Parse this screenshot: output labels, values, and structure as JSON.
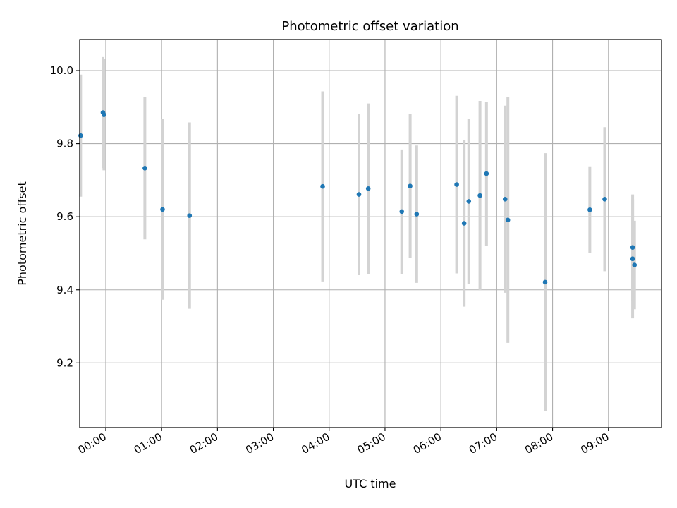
{
  "chart_data": {
    "type": "scatter",
    "title": "Photometric offset variation",
    "xlabel": "UTC time",
    "ylabel": "Photometric offset",
    "grid": true,
    "x_unit": "hours UTC",
    "xlim": [
      "-0:28",
      "9:57"
    ],
    "ylim": [
      9.023,
      10.085
    ],
    "x_ticks": [
      "00:00",
      "01:00",
      "02:00",
      "03:00",
      "04:00",
      "05:00",
      "06:00",
      "07:00",
      "08:00",
      "09:00"
    ],
    "y_ticks": [
      "9.2",
      "9.4",
      "9.6",
      "9.8",
      "10.0"
    ],
    "colors": {
      "marker": "#1f77b4",
      "errorbar": "#d3d3d3",
      "grid": "#b0b0b0"
    },
    "points": [
      {
        "x": "-0:27",
        "y": 9.822,
        "err": 0.167
      },
      {
        "x": "-0:03",
        "y": 9.885,
        "err": 0.152
      },
      {
        "x": "-0:02",
        "y": 9.879,
        "err": 0.152
      },
      {
        "x": "0:42",
        "y": 9.733,
        "err": 0.195
      },
      {
        "x": "1:01",
        "y": 9.62,
        "err": 0.247
      },
      {
        "x": "1:30",
        "y": 9.603,
        "err": 0.255
      },
      {
        "x": "3:53",
        "y": 9.683,
        "err": 0.26
      },
      {
        "x": "4:32",
        "y": 9.661,
        "err": 0.221
      },
      {
        "x": "4:42",
        "y": 9.677,
        "err": 0.233
      },
      {
        "x": "5:18",
        "y": 9.614,
        "err": 0.17
      },
      {
        "x": "5:27",
        "y": 9.684,
        "err": 0.197
      },
      {
        "x": "5:34",
        "y": 9.607,
        "err": 0.188
      },
      {
        "x": "6:17",
        "y": 9.688,
        "err": 0.243
      },
      {
        "x": "6:25",
        "y": 9.582,
        "err": 0.228
      },
      {
        "x": "6:30",
        "y": 9.642,
        "err": 0.226
      },
      {
        "x": "6:42",
        "y": 9.658,
        "err": 0.259
      },
      {
        "x": "6:49",
        "y": 9.718,
        "err": 0.197
      },
      {
        "x": "7:09",
        "y": 9.648,
        "err": 0.256
      },
      {
        "x": "7:12",
        "y": 9.591,
        "err": 0.336
      },
      {
        "x": "7:52",
        "y": 9.421,
        "err": 0.353
      },
      {
        "x": "8:40",
        "y": 9.619,
        "err": 0.119
      },
      {
        "x": "8:56",
        "y": 9.648,
        "err": 0.197
      },
      {
        "x": "9:26",
        "y": 9.516,
        "err": 0.145
      },
      {
        "x": "9:26",
        "y": 9.485,
        "err": 0.163
      },
      {
        "x": "9:28",
        "y": 9.468,
        "err": 0.121
      }
    ]
  }
}
